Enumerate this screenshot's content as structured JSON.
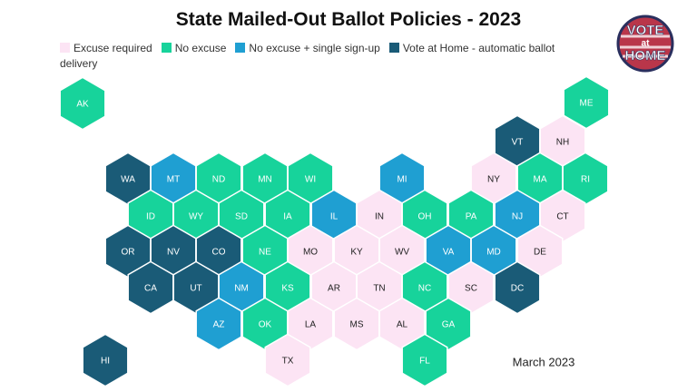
{
  "title": "State Mailed-Out Ballot Policies - 2023",
  "legend": [
    {
      "label": "Excuse required",
      "color": "#fce4f4"
    },
    {
      "label": "No excuse",
      "color": "#17d39b"
    },
    {
      "label": "No excuse + single sign-up",
      "color": "#1f9fd2"
    },
    {
      "label": "Vote at Home - automatic ballot delivery",
      "color": "#1a5b77"
    }
  ],
  "states": [
    {
      "label": "AK",
      "category": 1
    },
    {
      "label": "ME",
      "category": 1
    },
    {
      "label": "VT",
      "category": 3
    },
    {
      "label": "NH",
      "category": 0
    },
    {
      "label": "WA",
      "category": 3
    },
    {
      "label": "MT",
      "category": 2
    },
    {
      "label": "ND",
      "category": 1
    },
    {
      "label": "MN",
      "category": 1
    },
    {
      "label": "WI",
      "category": 1
    },
    {
      "label": "MI",
      "category": 2
    },
    {
      "label": "NY",
      "category": 0
    },
    {
      "label": "MA",
      "category": 1
    },
    {
      "label": "RI",
      "category": 1
    },
    {
      "label": "ID",
      "category": 1
    },
    {
      "label": "WY",
      "category": 1
    },
    {
      "label": "SD",
      "category": 1
    },
    {
      "label": "IA",
      "category": 1
    },
    {
      "label": "IL",
      "category": 2
    },
    {
      "label": "IN",
      "category": 0
    },
    {
      "label": "OH",
      "category": 1
    },
    {
      "label": "PA",
      "category": 1
    },
    {
      "label": "NJ",
      "category": 2
    },
    {
      "label": "CT",
      "category": 0
    },
    {
      "label": "OR",
      "category": 3
    },
    {
      "label": "NV",
      "category": 3
    },
    {
      "label": "CO",
      "category": 3
    },
    {
      "label": "NE",
      "category": 1
    },
    {
      "label": "MO",
      "category": 0
    },
    {
      "label": "KY",
      "category": 0
    },
    {
      "label": "WV",
      "category": 0
    },
    {
      "label": "VA",
      "category": 2
    },
    {
      "label": "MD",
      "category": 2
    },
    {
      "label": "DE",
      "category": 0
    },
    {
      "label": "CA",
      "category": 3
    },
    {
      "label": "UT",
      "category": 3
    },
    {
      "label": "NM",
      "category": 2
    },
    {
      "label": "KS",
      "category": 1
    },
    {
      "label": "AR",
      "category": 0
    },
    {
      "label": "TN",
      "category": 0
    },
    {
      "label": "NC",
      "category": 1
    },
    {
      "label": "SC",
      "category": 0
    },
    {
      "label": "DC",
      "category": 3
    },
    {
      "label": "AZ",
      "category": 2
    },
    {
      "label": "OK",
      "category": 1
    },
    {
      "label": "LA",
      "category": 0
    },
    {
      "label": "MS",
      "category": 0
    },
    {
      "label": "AL",
      "category": 0
    },
    {
      "label": "GA",
      "category": 1
    },
    {
      "label": "HI",
      "category": 3
    },
    {
      "label": "TX",
      "category": 0
    },
    {
      "label": "FL",
      "category": 1
    }
  ],
  "note": "March 2023",
  "logo": {
    "line1": "VOTE",
    "line2": "at",
    "line3": "HOME"
  }
}
